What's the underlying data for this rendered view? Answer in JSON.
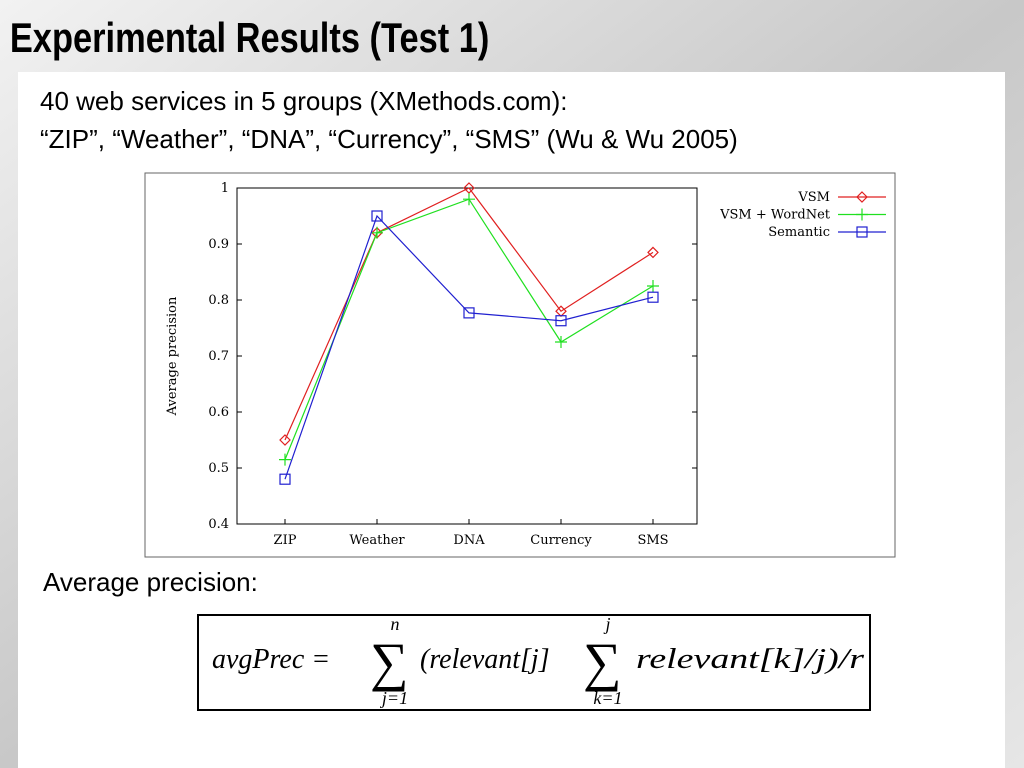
{
  "title": "Experimental Results (Test 1)",
  "bullets": [
    "40 web services in 5 groups (XMethods.com):",
    "“ZIP”, “Weather”, “DNA”, “Currency”, “SMS” (Wu & Wu 2005)"
  ],
  "chart_data": {
    "type": "line",
    "ylabel": "Average precision",
    "categories": [
      "ZIP",
      "Weather",
      "DNA",
      "Currency",
      "SMS"
    ],
    "series": [
      {
        "name": "VSM",
        "color": "#e02020",
        "marker": "diamond",
        "values": [
          0.55,
          0.92,
          1.0,
          0.78,
          0.885
        ]
      },
      {
        "name": "VSM + WordNet",
        "color": "#20e020",
        "marker": "plus",
        "values": [
          0.515,
          0.92,
          0.98,
          0.725,
          0.825
        ]
      },
      {
        "name": "Semantic",
        "color": "#2020d0",
        "marker": "square",
        "values": [
          0.48,
          0.95,
          0.777,
          0.763,
          0.805
        ]
      }
    ],
    "ylim": [
      0.4,
      1
    ],
    "yticks": [
      0.4,
      0.5,
      0.6,
      0.7,
      0.8,
      0.9,
      1
    ],
    "grid": false,
    "legend": "top-right"
  },
  "formula_label": "Average precision:",
  "formula": {
    "lhs": "avgPrec =",
    "sum_symbol": "∑",
    "sum1_upper": "n",
    "sum1_lower": "j=1",
    "term1": "(relevant[j]",
    "sum2_upper": "j",
    "sum2_lower": "k=1",
    "term2": "relevant[k]/j)/r"
  }
}
